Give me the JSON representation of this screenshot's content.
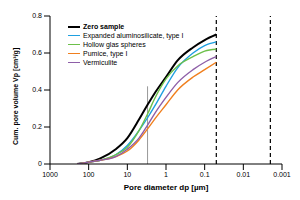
{
  "chart_data": {
    "type": "line",
    "x_label": "Pore diameter dp [µm]",
    "y_label": "Cum. pore volume Vp [cm³/g]",
    "log": "x",
    "grid": false,
    "legend": "upper left",
    "xlim": [
      1000,
      0.001
    ],
    "xticks": [
      1000,
      100,
      10,
      1,
      0.1,
      0.01,
      0.001
    ],
    "ylim": [
      0,
      0.8
    ],
    "yticks": [
      0,
      0.2,
      0.4,
      0.6,
      0.8
    ],
    "x": [
      200,
      100,
      50,
      20,
      10,
      5,
      3,
      2,
      1,
      0.5,
      0.2,
      0.1,
      0.05
    ],
    "series": [
      {
        "name": "Zero sample",
        "color": "#000000",
        "values": [
          0,
          0.01,
          0.03,
          0.08,
          0.14,
          0.24,
          0.32,
          0.38,
          0.47,
          0.56,
          0.63,
          0.67,
          0.7
        ]
      },
      {
        "name": "Expanded aluminosilicate, type I",
        "color": "#1fa0e0",
        "values": [
          0,
          0.01,
          0.02,
          0.05,
          0.1,
          0.18,
          0.25,
          0.31,
          0.42,
          0.52,
          0.6,
          0.64,
          0.66
        ]
      },
      {
        "name": "Hollow glas spheres",
        "color": "#6cc04a",
        "values": [
          0,
          0.01,
          0.02,
          0.05,
          0.09,
          0.18,
          0.27,
          0.35,
          0.46,
          0.53,
          0.58,
          0.61,
          0.62
        ]
      },
      {
        "name": "Pumice, type I",
        "color": "#f07f1e",
        "values": [
          0,
          0.01,
          0.02,
          0.04,
          0.07,
          0.13,
          0.19,
          0.24,
          0.32,
          0.4,
          0.47,
          0.51,
          0.55
        ]
      },
      {
        "name": "Vermiculite",
        "color": "#8e5fa8",
        "values": [
          0,
          0.01,
          0.02,
          0.04,
          0.08,
          0.14,
          0.21,
          0.27,
          0.36,
          0.44,
          0.51,
          0.55,
          0.58
        ]
      }
    ],
    "reference_lines": [
      {
        "x": 3,
        "color": "#999999",
        "line_style": "solid",
        "ylim": [
          0,
          0.42
        ]
      },
      {
        "x": 0.05,
        "color": "#000000",
        "line_style": "dashed"
      },
      {
        "x": 0.002,
        "color": "#000000",
        "line_style": "dashed"
      }
    ]
  }
}
